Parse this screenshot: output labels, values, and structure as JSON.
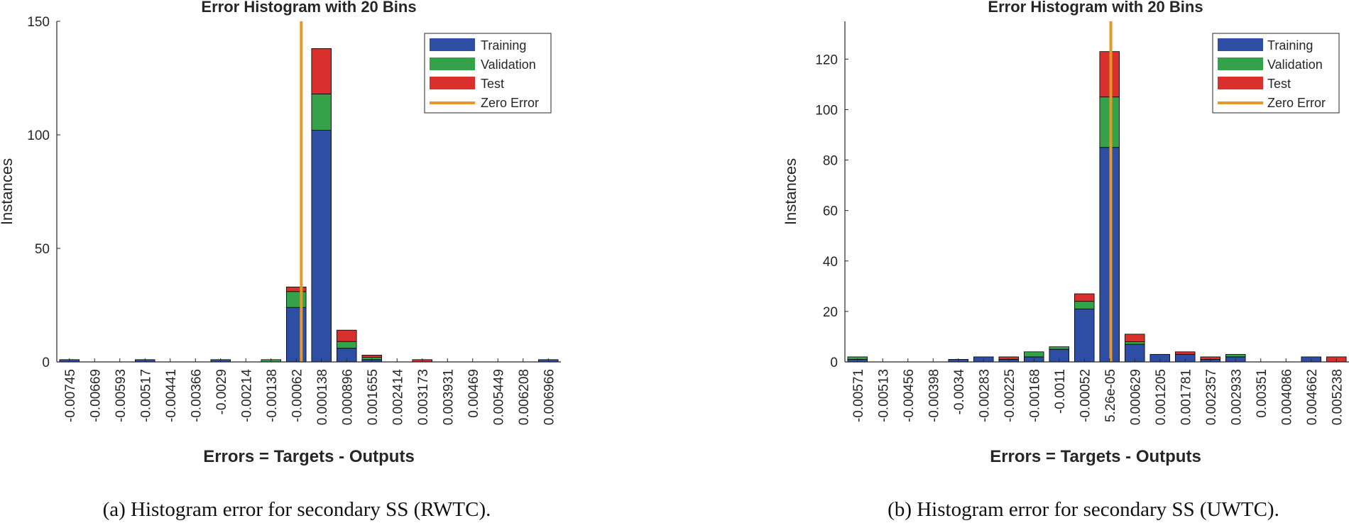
{
  "colors": {
    "training": "#2e4ea3",
    "validation": "#35a24a",
    "test": "#d9302d",
    "zero_error": "#e39a2a",
    "axis": "#262626"
  },
  "captions": [
    "(a) Histogram error for secondary SS (RWTC).",
    "(b) Histogram error for secondary SS (UWTC)."
  ],
  "chart_data": [
    {
      "type": "bar",
      "stacked": true,
      "title": "Error Histogram with 20 Bins",
      "xlabel": "Errors = Targets - Outputs",
      "ylabel": "Instances",
      "ylim": [
        0,
        150
      ],
      "yticks": [
        0,
        50,
        100,
        150
      ],
      "legend_position": "top-right",
      "legend": [
        "Training",
        "Validation",
        "Test",
        "Zero Error"
      ],
      "zero_error_bin": 9.2,
      "categories": [
        "-0.00745",
        "-0.00669",
        "-0.00593",
        "-0.00517",
        "-0.00441",
        "-0.00366",
        "-0.0029",
        "-0.00214",
        "-0.00138",
        "-0.00062",
        "0.000138",
        "0.000896",
        "0.001655",
        "0.002414",
        "0.003173",
        "0.003931",
        "0.00469",
        "0.005449",
        "0.006208",
        "0.006966"
      ],
      "series": [
        {
          "name": "Training",
          "values": [
            1,
            0,
            0,
            1,
            0,
            0,
            1,
            0,
            0,
            24,
            102,
            6,
            1,
            0,
            0,
            0,
            0,
            0,
            0,
            1
          ]
        },
        {
          "name": "Validation",
          "values": [
            0,
            0,
            0,
            0,
            0,
            0,
            0,
            0,
            1,
            7,
            16,
            3,
            1,
            0,
            0,
            0,
            0,
            0,
            0,
            0
          ]
        },
        {
          "name": "Test",
          "values": [
            0,
            0,
            0,
            0,
            0,
            0,
            0,
            0,
            0,
            2,
            20,
            5,
            1,
            0,
            1,
            0,
            0,
            0,
            0,
            0
          ]
        }
      ]
    },
    {
      "type": "bar",
      "stacked": true,
      "title": "Error Histogram with 20 Bins",
      "xlabel": "Errors = Targets - Outputs",
      "ylabel": "Instances",
      "ylim": [
        0,
        135
      ],
      "yticks": [
        0,
        20,
        40,
        60,
        80,
        100,
        120
      ],
      "legend_position": "top-right",
      "legend": [
        "Training",
        "Validation",
        "Test",
        "Zero Error"
      ],
      "zero_error_bin": 10.05,
      "categories": [
        "-0.00571",
        "-0.00513",
        "-0.00456",
        "-0.00398",
        "-0.0034",
        "-0.00283",
        "-0.00225",
        "-0.00168",
        "-0.0011",
        "-0.00052",
        "5.26e-05",
        "0.000629",
        "0.001205",
        "0.001781",
        "0.002357",
        "0.002933",
        "0.00351",
        "0.004086",
        "0.004662",
        "0.005238"
      ],
      "series": [
        {
          "name": "Training",
          "values": [
            1,
            0,
            0,
            0,
            1,
            2,
            1,
            2,
            5,
            21,
            85,
            7,
            3,
            3,
            1,
            2,
            0,
            0,
            2,
            0
          ]
        },
        {
          "name": "Validation",
          "values": [
            1,
            0,
            0,
            0,
            0,
            0,
            0,
            2,
            1,
            3,
            20,
            1,
            0,
            0,
            0,
            1,
            0,
            0,
            0,
            0
          ]
        },
        {
          "name": "Test",
          "values": [
            0,
            0,
            0,
            0,
            0,
            0,
            1,
            0,
            0,
            3,
            18,
            3,
            0,
            1,
            1,
            0,
            0,
            0,
            0,
            2
          ]
        }
      ]
    }
  ]
}
